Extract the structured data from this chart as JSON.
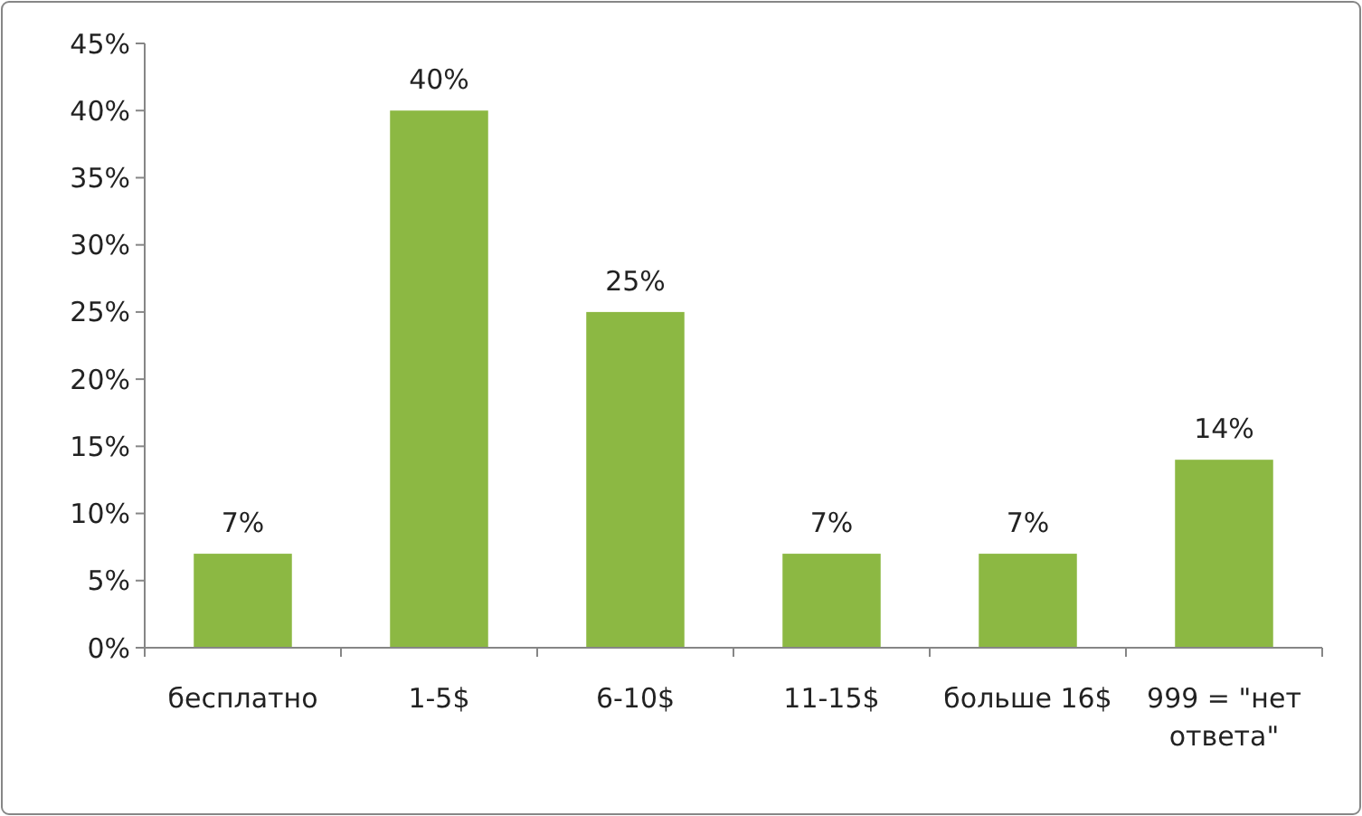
{
  "chart_data": {
    "type": "bar",
    "categories": [
      "бесплатно",
      "1-5$",
      "6-10$",
      "11-15$",
      "больше 16$",
      "999 = \"нет ответа\""
    ],
    "values": [
      7,
      40,
      25,
      7,
      7,
      14
    ],
    "color": "#8cb843",
    "value_labels": [
      "7%",
      "40%",
      "25%",
      "7%",
      "7%",
      "14%"
    ],
    "ylim": [
      0,
      45
    ],
    "yticks": [
      {
        "value": 0,
        "label": "0%"
      },
      {
        "value": 5,
        "label": "5%"
      },
      {
        "value": 10,
        "label": "10%"
      },
      {
        "value": 15,
        "label": "15%"
      },
      {
        "value": 20,
        "label": "20%"
      },
      {
        "value": 25,
        "label": "25%"
      },
      {
        "value": 30,
        "label": "30%"
      },
      {
        "value": 35,
        "label": "35%"
      },
      {
        "value": 40,
        "label": "40%"
      },
      {
        "value": 45,
        "label": "45%"
      }
    ]
  }
}
